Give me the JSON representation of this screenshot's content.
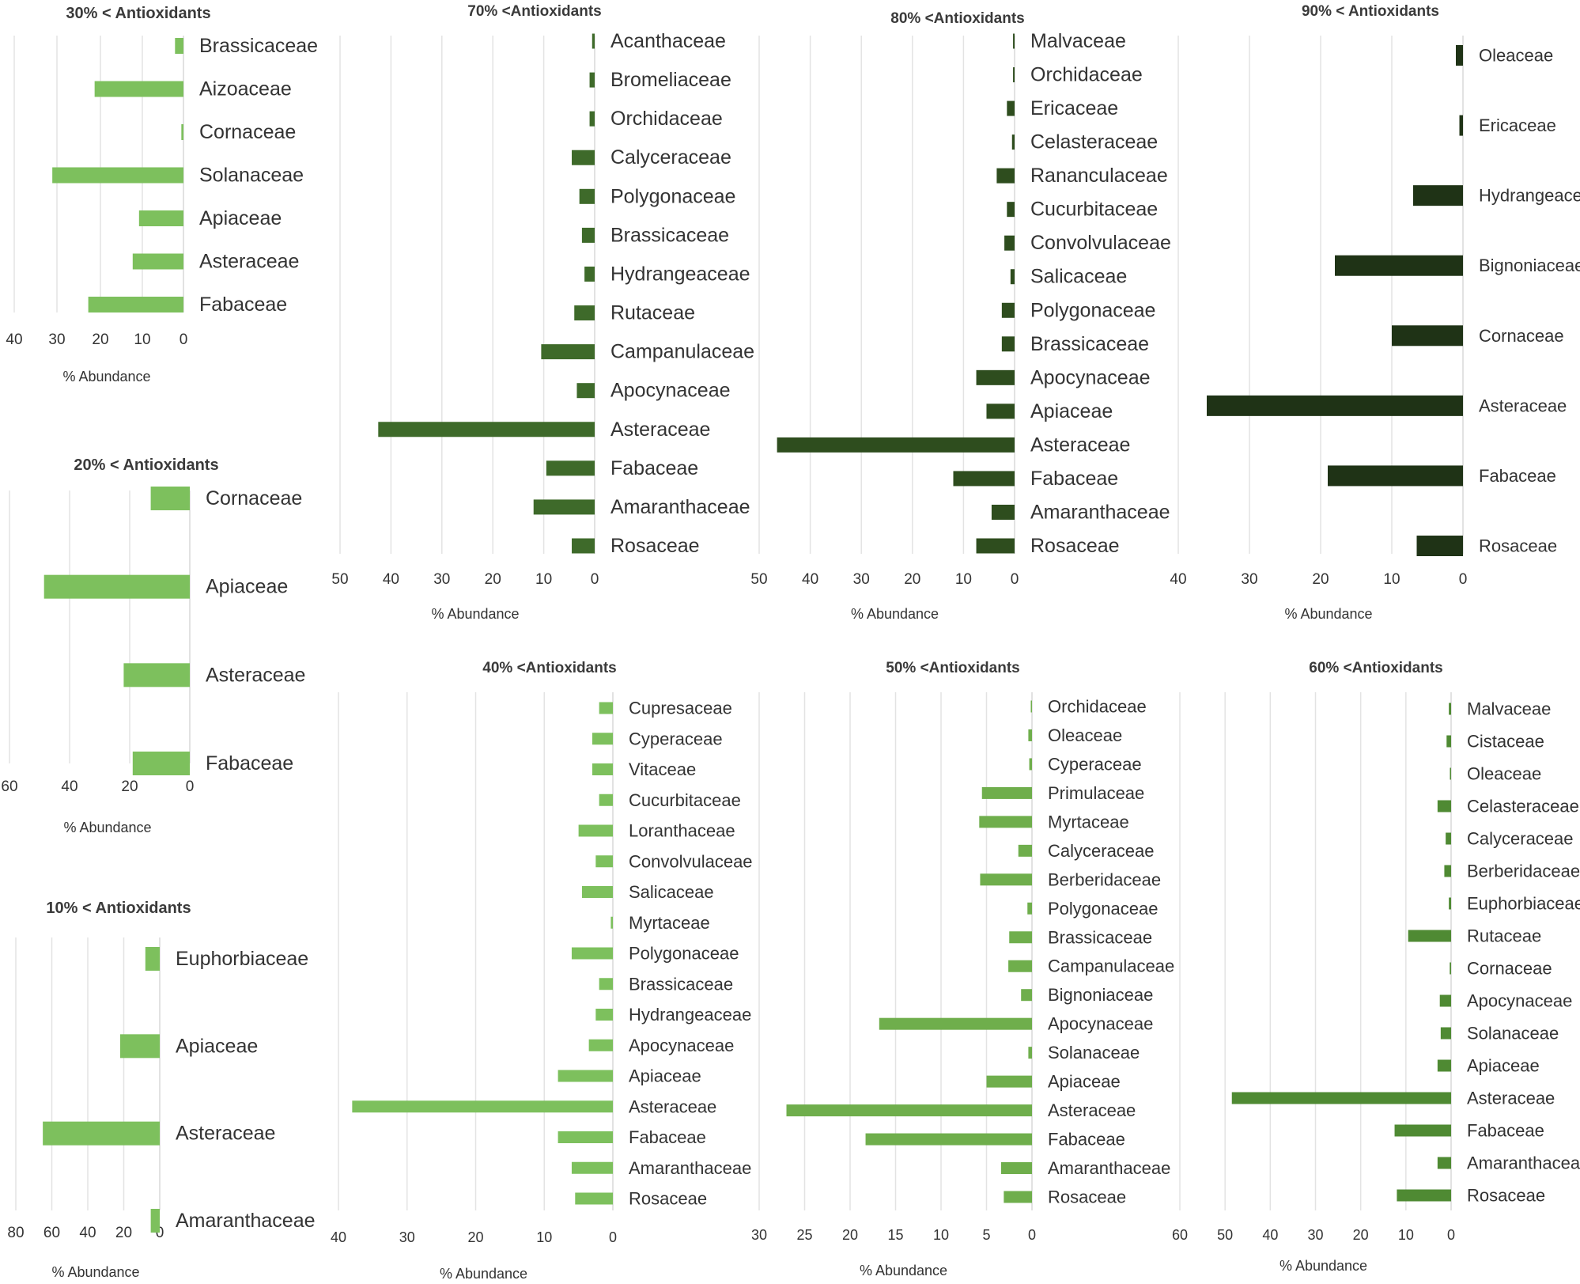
{
  "colors": {
    "light_green": "#7dc05d",
    "mid_green": "#5b9a3d",
    "dark_green": "#3e6a2a",
    "darker_green": "#2e4d1e",
    "darkest_green": "#1f3316"
  },
  "chart_data": [
    {
      "id": "p30",
      "type": "bar",
      "orientation": "horizontal-reversed",
      "title": "30% < Antioxidants",
      "categories": [
        "Brassicaceae",
        "Aizoaceae",
        "Cornaceae",
        "Solanaceae",
        "Apiaceae",
        "Asteraceae",
        "Fabaceae"
      ],
      "values": [
        2,
        21,
        0.5,
        31,
        10.5,
        12,
        22.5
      ],
      "xlim": [
        0,
        40
      ],
      "ticks": [
        "40",
        "30",
        "20",
        "10",
        "0"
      ],
      "xlabel": "% Abundance",
      "color": "#7dc05d"
    },
    {
      "id": "p20",
      "type": "bar",
      "orientation": "horizontal-reversed",
      "title": "20% < Antioxidants",
      "categories": [
        "Cornaceae",
        "Apiaceae",
        "Asteraceae",
        "Fabaceae"
      ],
      "values": [
        13,
        48.5,
        22,
        19
      ],
      "xlim": [
        0,
        60
      ],
      "ticks": [
        "60",
        "40",
        "20",
        "0"
      ],
      "xlabel": "% Abundance",
      "color": "#7dc05d"
    },
    {
      "id": "p10",
      "type": "bar",
      "orientation": "horizontal-reversed",
      "title": "10% < Antioxidants",
      "categories": [
        "Euphorbiaceae",
        "Apiaceae",
        "Asteraceae",
        "Amaranthaceae"
      ],
      "values": [
        8,
        22,
        65,
        5
      ],
      "xlim": [
        0,
        80
      ],
      "ticks": [
        "80",
        "60",
        "40",
        "20",
        "0"
      ],
      "xlabel": "% Abundance",
      "color": "#7dc05d"
    },
    {
      "id": "p70",
      "type": "bar",
      "orientation": "horizontal-reversed",
      "title": "70% <Antioxidants",
      "categories": [
        "Acanthaceae",
        "Bromeliaceae",
        "Orchidaceae",
        "Calyceraceae",
        "Polygonaceae",
        "Brassicaceae",
        "Hydrangeaceae",
        "Rutaceae",
        "Campanulaceae",
        "Apocynaceae",
        "Asteraceae",
        "Fabaceae",
        "Amaranthaceae",
        "Rosaceae"
      ],
      "values": [
        0.5,
        1,
        1,
        4.5,
        3,
        2.5,
        2,
        4,
        10.5,
        3.5,
        42.5,
        9.5,
        12,
        4.5
      ],
      "xlim": [
        0,
        50
      ],
      "ticks": [
        "50",
        "40",
        "30",
        "20",
        "10",
        "0"
      ],
      "xlabel": "% Abundance",
      "color": "#3e6a2a"
    },
    {
      "id": "p80",
      "type": "bar",
      "orientation": "horizontal-reversed",
      "title": "80% <Antioxidants",
      "categories": [
        "Malvaceae",
        "Orchidaceae",
        "Ericaceae",
        "Celasteraceae",
        "Rananculaceae",
        "Cucurbitaceae",
        "Convolvulaceae",
        "Salicaceae",
        "Polygonaceae",
        "Brassicaceae",
        "Apocynaceae",
        "Apiaceae",
        "Asteraceae",
        "Fabaceae",
        "Amaranthaceae",
        "Rosaceae"
      ],
      "values": [
        0.3,
        0.3,
        1.5,
        0.5,
        3.5,
        1.5,
        2,
        0.8,
        2.5,
        2.5,
        7.5,
        5.5,
        46.5,
        12,
        4.5,
        7.5
      ],
      "xlim": [
        0,
        50
      ],
      "ticks": [
        "50",
        "40",
        "30",
        "20",
        "10",
        "0"
      ],
      "xlabel": "% Abundance",
      "color": "#2e4d1e"
    },
    {
      "id": "p90",
      "type": "bar",
      "orientation": "horizontal-reversed",
      "title": "90% < Antioxidants",
      "categories": [
        "Oleaceae",
        "Ericaceae",
        "Hydrangeaceae",
        "Bignoniaceae",
        "Cornaceae",
        "Asteraceae",
        "Fabaceae",
        "Rosaceae"
      ],
      "values": [
        1,
        0.5,
        7,
        18,
        10,
        36,
        19,
        6.5
      ],
      "xlim": [
        0,
        40
      ],
      "ticks": [
        "40",
        "30",
        "20",
        "10",
        "0"
      ],
      "xlabel": "% Abundance",
      "color": "#1f3316"
    },
    {
      "id": "p40",
      "type": "bar",
      "orientation": "horizontal-reversed",
      "title": "40% <Antioxidants",
      "categories": [
        "Cupresaceae",
        "Cyperaceae",
        "Vitaceae",
        "Cucurbitaceae",
        "Loranthaceae",
        "Convolvulaceae",
        "Salicaceae",
        "Myrtaceae",
        "Polygonaceae",
        "Brassicaceae",
        "Hydrangeaceae",
        "Apocynaceae",
        "Apiaceae",
        "Asteraceae",
        "Fabaceae",
        "Amaranthaceae",
        "Rosaceae"
      ],
      "values": [
        2,
        3,
        3,
        2,
        5,
        2.5,
        4.5,
        0.3,
        6,
        2,
        2.5,
        3.5,
        8,
        38,
        8,
        6,
        5.5
      ],
      "xlim": [
        0,
        40
      ],
      "ticks": [
        "40",
        "30",
        "20",
        "10",
        "0"
      ],
      "xlabel": "% Abundance",
      "color": "#7dc05d"
    },
    {
      "id": "p50",
      "type": "bar",
      "orientation": "horizontal-reversed",
      "title": "50% <Antioxidants",
      "categories": [
        "Orchidaceae",
        "Oleaceae",
        "Cyperaceae",
        "Primulaceae",
        "Myrtaceae",
        "Calyceraceae",
        "Berberidaceae",
        "Polygonaceae",
        "Brassicaceae",
        "Campanulaceae",
        "Bignoniaceae",
        "Apocynaceae",
        "Solanaceae",
        "Apiaceae",
        "Asteraceae",
        "Fabaceae",
        "Amaranthaceae",
        "Rosaceae"
      ],
      "values": [
        0.1,
        0.4,
        0.3,
        5.5,
        5.8,
        1.5,
        5.7,
        0.5,
        2.5,
        2.6,
        1.2,
        16.8,
        0.4,
        5,
        27,
        18.3,
        3.4,
        3.1
      ],
      "xlim": [
        0,
        30
      ],
      "ticks": [
        "30",
        "25",
        "20",
        "15",
        "10",
        "5",
        "0"
      ],
      "xlabel": "% Abundance",
      "color": "#6fae4c"
    },
    {
      "id": "p60",
      "type": "bar",
      "orientation": "horizontal-reversed",
      "title": "60% <Antioxidants",
      "categories": [
        "Malvaceae",
        "Cistaceae",
        "Oleaceae",
        "Celasteraceae",
        "Calyceraceae",
        "Berberidaceae",
        "Euphorbiaceae",
        "Rutaceae",
        "Cornaceae",
        "Apocynaceae",
        "Solanaceae",
        "Apiaceae",
        "Asteraceae",
        "Fabaceae",
        "Amaranthaceae",
        "Rosaceae"
      ],
      "values": [
        0.5,
        1,
        0.2,
        3,
        1.2,
        1.5,
        0.5,
        9.5,
        0.3,
        2.5,
        2.3,
        3,
        48.5,
        12.5,
        3,
        12
      ],
      "xlim": [
        0,
        60
      ],
      "ticks": [
        "60",
        "50",
        "40",
        "30",
        "20",
        "10",
        "0"
      ],
      "xlabel": "% Abundance",
      "color": "#4f8a33"
    }
  ]
}
